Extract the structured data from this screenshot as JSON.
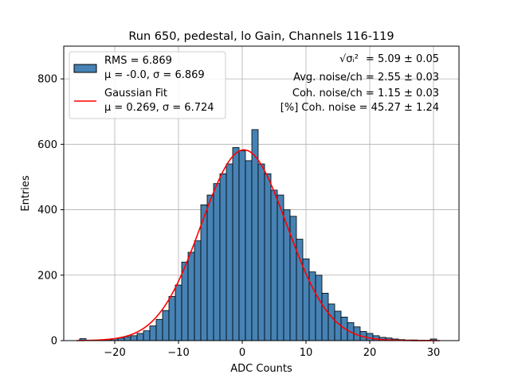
{
  "chart_data": {
    "type": "bar",
    "title": "Run 650, pedestal, lo Gain, Channels 116-119",
    "xlabel": "ADC Counts",
    "ylabel": "Entries",
    "xlim": [
      -28,
      34
    ],
    "ylim": [
      0,
      900
    ],
    "xticks": [
      -20,
      -10,
      0,
      10,
      20,
      30
    ],
    "yticks": [
      0,
      200,
      400,
      600,
      800
    ],
    "grid": true,
    "legend_position": "top-left",
    "bin_width": 1,
    "bins": [
      [
        -25,
        6
      ],
      [
        -21,
        3
      ],
      [
        -20,
        6
      ],
      [
        -19,
        8
      ],
      [
        -18,
        12
      ],
      [
        -17,
        15
      ],
      [
        -16,
        22
      ],
      [
        -15,
        30
      ],
      [
        -14,
        45
      ],
      [
        -13,
        65
      ],
      [
        -12,
        92
      ],
      [
        -11,
        135
      ],
      [
        -10,
        170
      ],
      [
        -9,
        240
      ],
      [
        -8,
        270
      ],
      [
        -7,
        305
      ],
      [
        -6,
        415
      ],
      [
        -5,
        445
      ],
      [
        -4,
        480
      ],
      [
        -3,
        510
      ],
      [
        -2,
        540
      ],
      [
        -1,
        590
      ],
      [
        0,
        580
      ],
      [
        1,
        550
      ],
      [
        2,
        645
      ],
      [
        3,
        540
      ],
      [
        4,
        510
      ],
      [
        5,
        460
      ],
      [
        6,
        445
      ],
      [
        7,
        400
      ],
      [
        8,
        380
      ],
      [
        9,
        310
      ],
      [
        10,
        250
      ],
      [
        11,
        210
      ],
      [
        12,
        200
      ],
      [
        13,
        145
      ],
      [
        14,
        112
      ],
      [
        15,
        90
      ],
      [
        16,
        72
      ],
      [
        17,
        55
      ],
      [
        18,
        42
      ],
      [
        19,
        28
      ],
      [
        20,
        22
      ],
      [
        21,
        15
      ],
      [
        22,
        10
      ],
      [
        23,
        8
      ],
      [
        24,
        5
      ],
      [
        25,
        3
      ],
      [
        26,
        2
      ],
      [
        27,
        2
      ],
      [
        28,
        1
      ],
      [
        29,
        1
      ],
      [
        30,
        5
      ]
    ],
    "fit": {
      "mu": 0.269,
      "sigma": 6.724,
      "amplitude": 583,
      "x_range": [
        -26,
        31
      ]
    },
    "colors": {
      "bars": "#4682b4",
      "bar_edge": "#000000",
      "fit_line": "#ff0000",
      "grid": "#b0b0b0"
    },
    "series": [
      {
        "name": "RMS = 6.869",
        "stats": "μ = -0.0, σ = 6.869",
        "type": "histogram"
      },
      {
        "name": "Gaussian Fit",
        "stats": "μ = 0.269, σ = 6.724",
        "type": "line"
      }
    ],
    "annotations": [
      {
        "label": "√σᵢ²",
        "value": "= 5.09 ± 0.05"
      },
      {
        "label": "",
        "value": "Avg. noise/ch = 2.55 ± 0.03"
      },
      {
        "label": "",
        "value": "Coh. noise/ch = 1.15 ± 0.03"
      },
      {
        "label": "",
        "value": "[%] Coh. noise = 45.27 ± 1.24"
      }
    ]
  }
}
